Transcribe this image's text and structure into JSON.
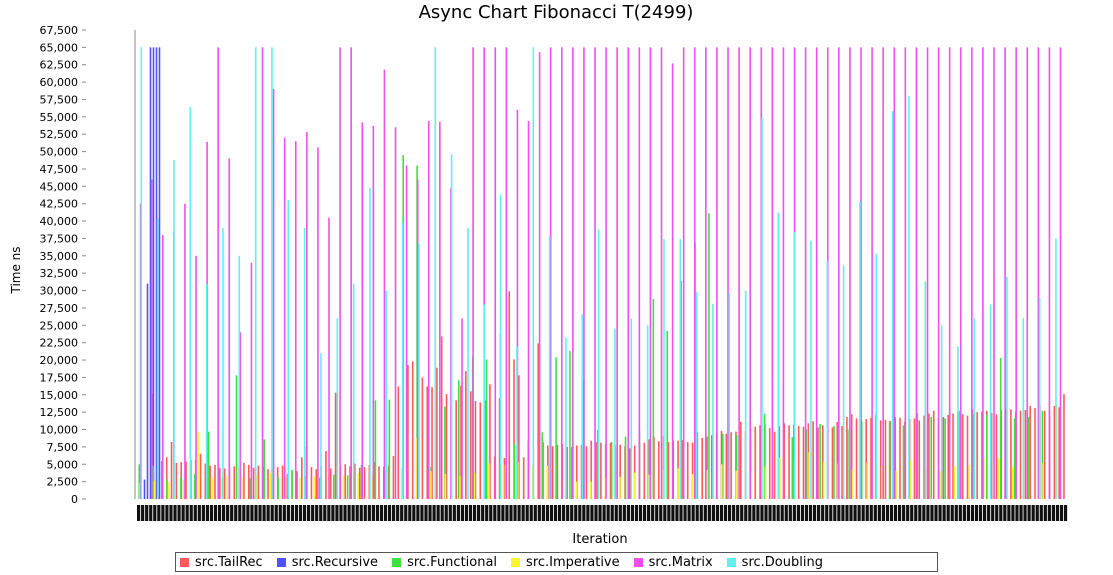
{
  "chart_data": {
    "type": "bar",
    "title": "Async Chart Fibonacci T(2499)",
    "xlabel": "Iteration",
    "ylabel": "Time ns",
    "ylim": [
      0,
      65000
    ],
    "yticks": [
      "0",
      "2,500",
      "5,000",
      "7,500",
      "10,000",
      "12,500",
      "15,000",
      "17,500",
      "20,000",
      "22,500",
      "25,000",
      "27,500",
      "30,000",
      "32,500",
      "35,000",
      "37,500",
      "40,000",
      "42,500",
      "45,000",
      "47,500",
      "50,000",
      "52,500",
      "55,000",
      "57,500",
      "60,000",
      "62,500",
      "65,000",
      "67,500"
    ],
    "grid": false,
    "legend_position": "bottom",
    "series": [
      {
        "name": "src.TailRec",
        "color": "#ff5a5a",
        "values": [
          0,
          0,
          0,
          15200,
          9100,
          5500,
          6000,
          8200,
          5200,
          5300,
          5400,
          5600,
          5600,
          6500,
          5100,
          4800,
          4900,
          4500,
          4400,
          4600,
          4700,
          4500,
          5200,
          4900,
          4500,
          4800,
          4700,
          4300,
          4400,
          4600,
          4800,
          3600,
          3900,
          4000,
          6000,
          7500,
          4600,
          4300,
          4700,
          6900,
          4400,
          15300,
          4800,
          5000,
          4700,
          5100,
          4500,
          4600,
          4900,
          5300,
          4700,
          4600,
          4800,
          6200,
          16200,
          16800,
          19300,
          19800,
          19400,
          17500,
          16200,
          16100,
          18900,
          23400,
          15100,
          14100,
          14200,
          16300,
          18400,
          15500,
          14100,
          13900,
          14200,
          16500,
          6100,
          14500,
          5900,
          29900,
          20100,
          17800,
          6000,
          7400,
          7300,
          22400,
          8200,
          7700,
          7600,
          7800,
          7900,
          7500,
          7500,
          7700,
          7800,
          7600,
          8400,
          8200,
          8100,
          7900,
          8100,
          7700,
          7800,
          7600,
          7300,
          7700,
          8000,
          8100,
          8600,
          8900,
          8300,
          9000,
          8200,
          8400,
          8400,
          8500,
          8200,
          8100,
          9600,
          8800,
          9000,
          9200,
          9600,
          9800,
          9400,
          9600,
          9700,
          11100,
          9800,
          10100,
          10400,
          10600,
          10800,
          10200,
          9700,
          10500,
          10900,
          10600,
          10700,
          10500,
          10400,
          10900,
          11200,
          10300,
          10600,
          10700,
          10300,
          11100,
          10500,
          11800,
          12200,
          11600,
          11400,
          11500,
          11700,
          12100,
          11300,
          11400,
          11200,
          11800,
          11700,
          11100,
          11500,
          11600,
          11300,
          12000,
          12300,
          12700,
          11600,
          11800,
          12100,
          12300,
          12500,
          12200,
          12000,
          12900,
          12500,
          12600,
          12700,
          12400,
          12200,
          12800,
          13000,
          12900,
          12500,
          12700,
          12800,
          13400,
          13100,
          13500,
          12700,
          12800,
          13400,
          13200,
          15100
        ]
      },
      {
        "name": "src.Recursive",
        "color": "#5050ff",
        "values": [
          2800,
          31000,
          65000,
          65000,
          65000,
          65000
        ]
      },
      {
        "name": "src.Functional",
        "color": "#40e040",
        "values": [
          5000,
          4800,
          2900,
          3100,
          3600,
          9700,
          3200,
          17800,
          3000,
          8600,
          3200,
          4200,
          3300,
          3100,
          3500,
          3400,
          4900,
          14200,
          14300,
          49500,
          48000,
          4600,
          13300,
          17100,
          20500,
          20100,
          23900,
          7900,
          8400,
          9600,
          20400,
          21300,
          17200,
          9900,
          8200,
          9000,
          10000,
          28800,
          24200,
          31400,
          36800,
          41100,
          9400,
          9200,
          8400,
          12300,
          17000,
          8900,
          10000,
          10800,
          10500,
          10000,
          11100,
          11400,
          11200,
          10600,
          12400,
          11800,
          11600,
          12700,
          12300,
          12100,
          20300,
          11600,
          11800,
          12700,
          12800
        ]
      },
      {
        "name": "src.Imperative",
        "color": "#f5f530",
        "values": [
          2300,
          2600,
          2500,
          2800,
          9700,
          3100,
          3300,
          3200,
          3400,
          3700,
          3200,
          3100,
          3200,
          3500,
          3400,
          3700,
          3400,
          4200,
          4400,
          8800,
          4000,
          3600,
          3300,
          3700,
          5100,
          4900,
          5300,
          4600,
          4800,
          2300,
          2500,
          2500,
          3100,
          3200,
          3800,
          3500,
          4100,
          4400,
          3600,
          4200,
          5000,
          4100,
          3900,
          4700,
          6000,
          5400,
          6700,
          5400,
          5100,
          4300,
          5200,
          4800,
          4100,
          5500,
          4400,
          4000,
          4700,
          4900,
          5900,
          5800,
          4600,
          4400,
          5200,
          13600
        ]
      },
      {
        "name": "src.Matrix",
        "color": "#f050f0",
        "values": [
          42500,
          46000,
          38000,
          38500,
          42500,
          35000,
          51400,
          65000,
          49000,
          24000,
          34000,
          65000,
          59000,
          52000,
          51500,
          52800,
          50600,
          40500,
          65000,
          65000,
          54200,
          53700,
          61800,
          53500,
          48000,
          46000,
          54400,
          54300,
          44800,
          26000,
          65000,
          65000,
          65000,
          65000,
          56000,
          54400,
          64300,
          65000,
          65000,
          65000,
          65000,
          65000,
          65000,
          65000,
          65000,
          65000,
          65000,
          65000,
          62700,
          65000,
          65000,
          65000,
          65000,
          65000,
          65000,
          65000,
          65000,
          65000,
          65000,
          65000,
          65000,
          65000,
          65000,
          65000,
          65000,
          65000,
          65000,
          65000,
          65000,
          65000,
          65000,
          65000,
          65000,
          65000,
          65000,
          65000,
          65000,
          65000,
          65000,
          65000,
          65000,
          65000,
          65000,
          65000
        ]
      },
      {
        "name": "src.Doubling",
        "color": "#60f0f0",
        "values": [
          65000,
          40400,
          48800,
          56400,
          31000,
          39000,
          35000,
          65000,
          65000,
          43000,
          39000,
          21000,
          26000,
          31000,
          44800,
          30000,
          40000,
          36800,
          65000,
          49600,
          39000,
          28000,
          43800,
          22000,
          65000,
          37800,
          23200,
          26600,
          38800,
          24500,
          26000,
          25000,
          37400,
          37400,
          29800,
          28100,
          29600,
          30000,
          54800,
          41200,
          38400,
          37200,
          34200,
          33600,
          42800,
          35300,
          55800,
          58000,
          31300,
          25000,
          22000,
          26000,
          28000,
          32000,
          26000,
          29000,
          37500
        ]
      }
    ]
  }
}
